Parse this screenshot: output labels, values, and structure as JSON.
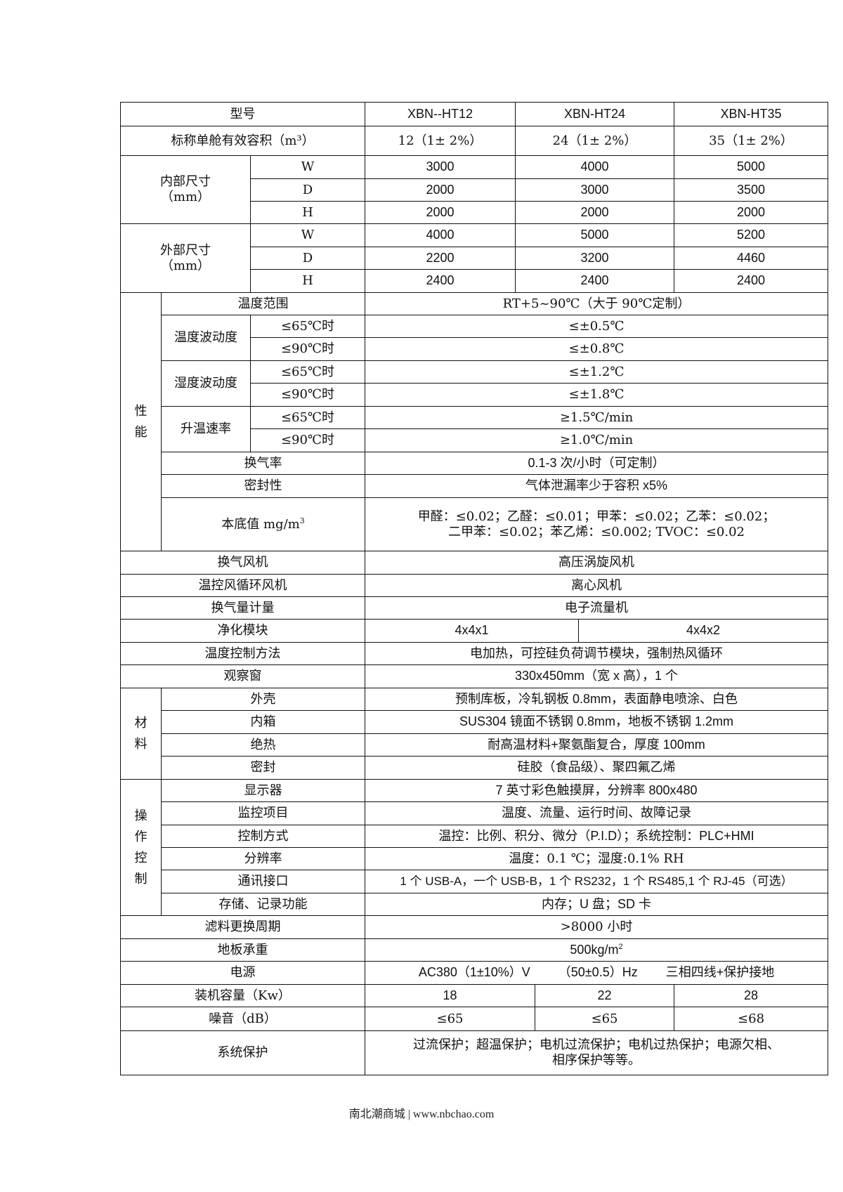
{
  "header": {
    "label": "型号",
    "models": [
      "XBN--HT12",
      "XBN-HT24",
      "XBN-HT35"
    ]
  },
  "volume": {
    "label": "标称单舱有效容积（m³）",
    "values": [
      "12（1± 2%）",
      "24（1± 2%）",
      "35（1± 2%）"
    ]
  },
  "inner_size": {
    "label": "内部尺寸",
    "unit": "（mm）",
    "rows": [
      {
        "dim": "W",
        "values": [
          "3000",
          "4000",
          "5000"
        ]
      },
      {
        "dim": "D",
        "values": [
          "2000",
          "3000",
          "3500"
        ]
      },
      {
        "dim": "H",
        "values": [
          "2000",
          "2000",
          "2000"
        ]
      }
    ]
  },
  "outer_size": {
    "label": "外部尺寸",
    "unit": "（mm）",
    "rows": [
      {
        "dim": "W",
        "values": [
          "4000",
          "5000",
          "5200"
        ]
      },
      {
        "dim": "D",
        "values": [
          "2200",
          "3200",
          "4460"
        ]
      },
      {
        "dim": "H",
        "values": [
          "2400",
          "2400",
          "2400"
        ]
      }
    ]
  },
  "performance": {
    "group": "性能",
    "temp_range": {
      "label": "温度范围",
      "value": "RT+5~90℃（大于 90℃定制）"
    },
    "temp_fluct": {
      "label": "温度波动度",
      "rows": [
        {
          "cond": "≤65℃时",
          "value": "≤±0.5℃"
        },
        {
          "cond": "≤90℃时",
          "value": "≤±0.8℃"
        }
      ]
    },
    "humid_fluct": {
      "label": "湿度波动度",
      "rows": [
        {
          "cond": "≤65℃时",
          "value": "≤±1.2℃"
        },
        {
          "cond": "≤90℃时",
          "value": "≤±1.8℃"
        }
      ]
    },
    "heating_rate": {
      "label": "升温速率",
      "rows": [
        {
          "cond": "≤65℃时",
          "value": "≥1.5℃/min"
        },
        {
          "cond": "≤90℃时",
          "value": "≥1.0℃/min"
        }
      ]
    },
    "air_change": {
      "label": "换气率",
      "value": "0.1-3 次/小时（可定制）"
    },
    "sealing": {
      "label": "密封性",
      "value": "气体泄漏率少于容积 x5%"
    },
    "background": {
      "label": "本底值 mg/m",
      "sup": "3",
      "lines": [
        "甲醛：≤0.02；乙醛：≤0.01；甲苯：≤0.02；乙苯：≤0.02；",
        "二甲苯：≤0.02；苯乙烯：≤0.002; TVOC：≤0.02"
      ]
    }
  },
  "general1": [
    {
      "label": "换气风机",
      "value": "高压涡旋风机"
    },
    {
      "label": "温控风循环风机",
      "value": "离心风机"
    },
    {
      "label": "换气量计量",
      "value": "电子流量机"
    }
  ],
  "purification": {
    "label": "净化模块",
    "values": [
      "4x4x1",
      "4x4x2"
    ]
  },
  "general2": [
    {
      "label": "温度控制方法",
      "value": "电加热，可控硅负荷调节模块，强制热风循环"
    },
    {
      "label": "观察窗",
      "value": "330x450mm（宽 x 高），1 个"
    }
  ],
  "materials": {
    "group": "材料",
    "rows": [
      {
        "label": "外壳",
        "value": "预制库板，冷轧钢板 0.8mm，表面静电喷涂、白色"
      },
      {
        "label": "内箱",
        "value": "SUS304 镜面不锈钢 0.8mm，地板不锈钢 1.2mm"
      },
      {
        "label": "绝热",
        "value": "耐高温材料+聚氨酯复合，厚度 100mm"
      },
      {
        "label": "密封",
        "value": "硅胶（食品级）、聚四氟乙烯"
      }
    ]
  },
  "operation": {
    "group": "操作控制",
    "rows": [
      {
        "label": "显示器",
        "value": "7 英寸彩色触摸屏，分辨率 800x480"
      },
      {
        "label": "监控项目",
        "value": "温度、流量、运行时间、故障记录"
      },
      {
        "label": "控制方式",
        "value": "温控：比例、积分、微分（P.I.D）；系统控制：PLC+HMI"
      },
      {
        "label": "分辨率",
        "value": "温度：0.1 ℃；湿度:0.1% RH"
      },
      {
        "label": "通讯接口",
        "value": "1 个 USB-A，一个 USB-B，1 个 RS232，1 个 RS485,1 个 RJ-45（可选）"
      },
      {
        "label": "存储、记录功能",
        "value": "内存；U 盘；SD 卡"
      }
    ]
  },
  "filter_cycle": {
    "label": "滤料更换周期",
    "value": ">8000 小时"
  },
  "floor_load": {
    "label": "地板承重",
    "value": "500kg/m",
    "sup": "2"
  },
  "power": {
    "label": "电源",
    "parts": [
      "AC380（1±10%）V",
      "（50±0.5）Hz",
      "三相四线+保护接地"
    ]
  },
  "installed_power": {
    "label": "装机容量（Kw）",
    "values": [
      "18",
      "22",
      "28"
    ]
  },
  "noise": {
    "label": "噪音（dB）",
    "values": [
      "≤65",
      "≤65",
      "≤68"
    ]
  },
  "protection": {
    "label": "系统保护",
    "lines": [
      "过流保护；超温保护；电机过流保护；电机过热保护；电源欠相、",
      "相序保护等等。"
    ]
  },
  "footer": "南北潮商城 | www.nbchao.com"
}
